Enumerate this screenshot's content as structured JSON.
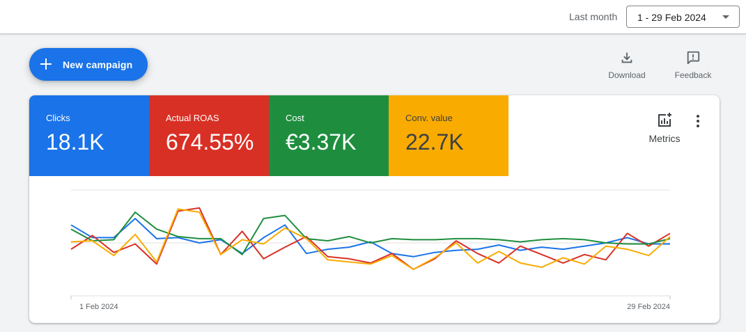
{
  "topbar": {
    "range_label": "Last month",
    "range_value": "1 - 29 Feb 2024"
  },
  "actions": {
    "new_campaign": "New campaign",
    "download": "Download",
    "feedback": "Feedback",
    "metrics": "Metrics"
  },
  "scorecards": [
    {
      "label": "Clicks",
      "value": "18.1K",
      "color": "#1a73e8"
    },
    {
      "label": "Actual ROAS",
      "value": "674.55%",
      "color": "#d93025"
    },
    {
      "label": "Cost",
      "value": "€3.37K",
      "color": "#1e8e3e"
    },
    {
      "label": "Conv. value",
      "value": "22.7K",
      "color": "#f9ab00"
    }
  ],
  "chart_data": {
    "type": "line",
    "x_start_label": "1 Feb 2024",
    "x_end_label": "29 Feb 2024",
    "x": [
      "1 Feb 2024",
      "2 Feb 2024",
      "3 Feb 2024",
      "4 Feb 2024",
      "5 Feb 2024",
      "6 Feb 2024",
      "7 Feb 2024",
      "8 Feb 2024",
      "9 Feb 2024",
      "10 Feb 2024",
      "11 Feb 2024",
      "12 Feb 2024",
      "13 Feb 2024",
      "14 Feb 2024",
      "15 Feb 2024",
      "16 Feb 2024",
      "17 Feb 2024",
      "18 Feb 2024",
      "19 Feb 2024",
      "20 Feb 2024",
      "21 Feb 2024",
      "22 Feb 2024",
      "23 Feb 2024",
      "24 Feb 2024",
      "25 Feb 2024",
      "26 Feb 2024",
      "27 Feb 2024",
      "28 Feb 2024",
      "29 Feb 2024"
    ],
    "y_axis": "unlabeled, relative scale 0–1",
    "grid": "horizontal",
    "series": [
      {
        "color": "#1a73e8",
        "values": [
          0.67,
          0.55,
          0.55,
          0.73,
          0.54,
          0.55,
          0.5,
          0.53,
          0.4,
          0.55,
          0.67,
          0.4,
          0.44,
          0.46,
          0.51,
          0.4,
          0.37,
          0.41,
          0.43,
          0.44,
          0.48,
          0.43,
          0.46,
          0.44,
          0.47,
          0.5,
          0.55,
          0.49,
          0.49
        ]
      },
      {
        "color": "#d93025",
        "values": [
          0.44,
          0.57,
          0.41,
          0.49,
          0.3,
          0.8,
          0.83,
          0.39,
          0.61,
          0.35,
          0.46,
          0.56,
          0.37,
          0.35,
          0.31,
          0.4,
          0.25,
          0.35,
          0.52,
          0.4,
          0.31,
          0.47,
          0.39,
          0.31,
          0.39,
          0.34,
          0.59,
          0.47,
          0.59
        ]
      },
      {
        "color": "#1e8e3e",
        "values": [
          0.63,
          0.52,
          0.53,
          0.79,
          0.63,
          0.56,
          0.54,
          0.54,
          0.39,
          0.73,
          0.76,
          0.54,
          0.52,
          0.56,
          0.5,
          0.54,
          0.53,
          0.53,
          0.54,
          0.54,
          0.53,
          0.51,
          0.53,
          0.54,
          0.53,
          0.5,
          0.49,
          0.49,
          0.54
        ]
      },
      {
        "color": "#f9ab00",
        "values": [
          0.51,
          0.52,
          0.38,
          0.58,
          0.32,
          0.82,
          0.79,
          0.39,
          0.53,
          0.49,
          0.64,
          0.54,
          0.34,
          0.32,
          0.3,
          0.38,
          0.25,
          0.36,
          0.5,
          0.31,
          0.42,
          0.31,
          0.27,
          0.36,
          0.3,
          0.47,
          0.44,
          0.38,
          0.56
        ]
      }
    ]
  }
}
